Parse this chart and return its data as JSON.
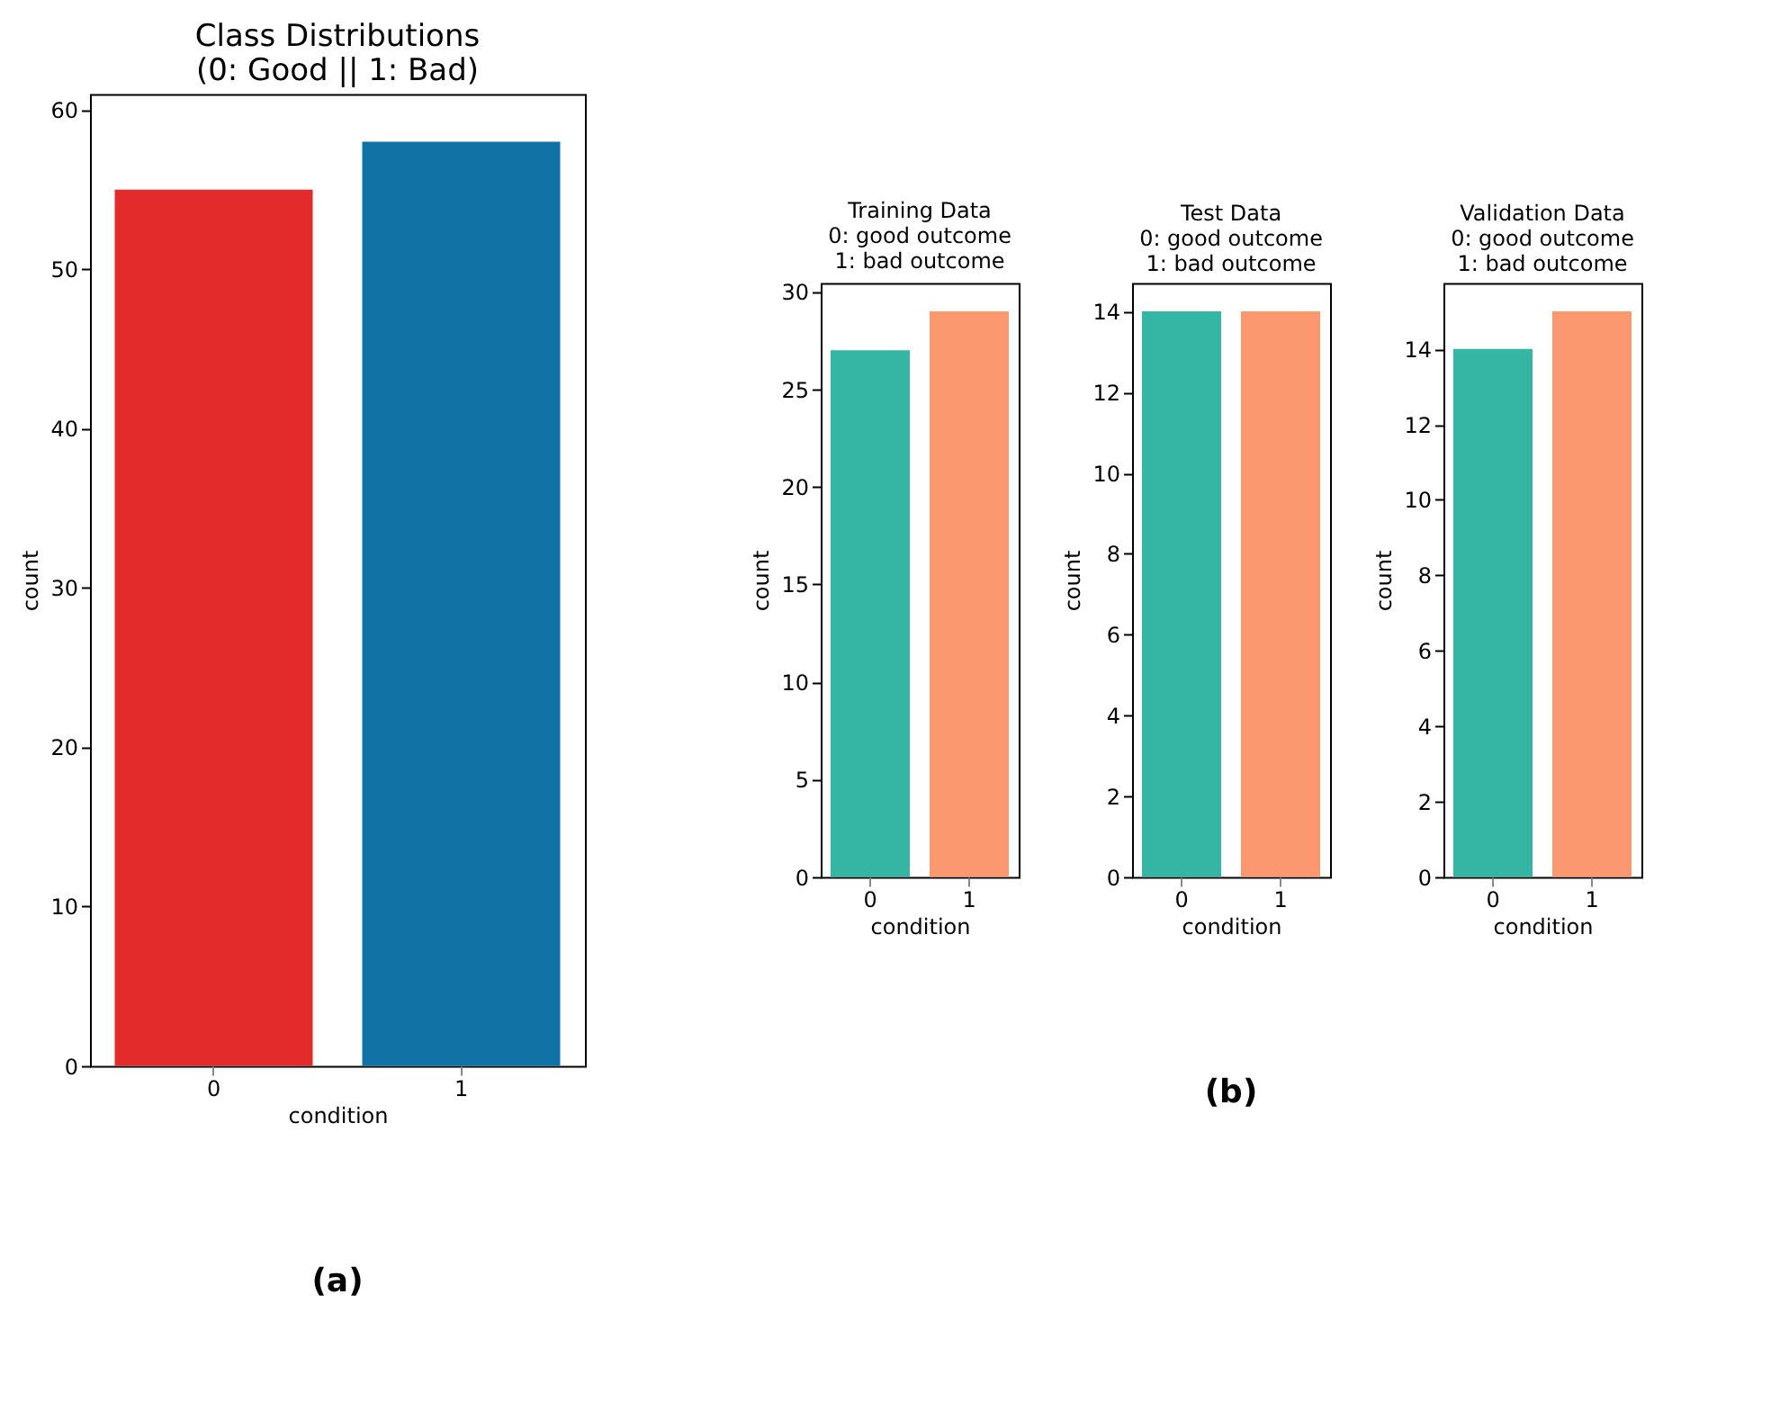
{
  "chart_data": [
    {
      "type": "bar",
      "title": "Class Distributions\n (0: Good || 1: Bad)",
      "xlabel": "condition",
      "ylabel": "count",
      "categories": [
        "0",
        "1"
      ],
      "values": [
        55,
        58
      ],
      "colors": [
        "#e32b2b",
        "#1172a5"
      ],
      "ylim": [
        0,
        61
      ],
      "yticks": [
        0,
        10,
        20,
        30,
        40,
        50,
        60
      ],
      "grid": false,
      "annotations": [
        "(a)"
      ]
    },
    {
      "type": "bar",
      "title": "Training Data\n0: good outcome\n 1: bad outcome",
      "xlabel": "condition",
      "ylabel": "count",
      "categories": [
        "0",
        "1"
      ],
      "values": [
        27,
        29
      ],
      "colors": [
        "#35b5a3",
        "#fc9870"
      ],
      "ylim": [
        0,
        30.45
      ],
      "yticks": [
        0,
        5,
        10,
        15,
        20,
        25,
        30
      ],
      "grid": false
    },
    {
      "type": "bar",
      "title": "Test Data\n0: good outcome\n 1: bad outcome",
      "xlabel": "condition",
      "ylabel": "count",
      "categories": [
        "0",
        "1"
      ],
      "values": [
        14,
        14
      ],
      "colors": [
        "#35b5a3",
        "#fc9870"
      ],
      "ylim": [
        0,
        14.7
      ],
      "yticks": [
        0,
        2,
        4,
        6,
        8,
        10,
        12,
        14
      ],
      "grid": false,
      "annotations": [
        "(b)"
      ]
    },
    {
      "type": "bar",
      "title": "Validation Data\n0: good outcome\n 1: bad outcome",
      "xlabel": "condition",
      "ylabel": "count",
      "categories": [
        "0",
        "1"
      ],
      "values": [
        14,
        15
      ],
      "colors": [
        "#35b5a3",
        "#fc9870"
      ],
      "ylim": [
        0,
        15.75
      ],
      "yticks": [
        0,
        2,
        4,
        6,
        8,
        10,
        12,
        14
      ],
      "grid": false
    }
  ]
}
